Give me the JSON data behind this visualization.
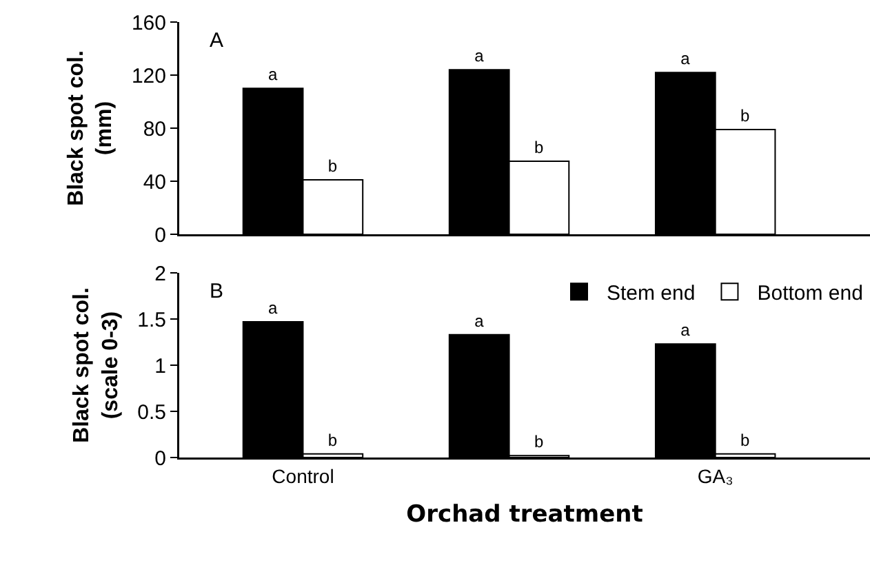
{
  "chart_data": [
    {
      "type": "bar",
      "categories": [
        null,
        null,
        null
      ],
      "ylabel": "Black spot col.\n(mm)",
      "ylim": [
        0,
        160
      ],
      "yticks": [
        0,
        40,
        80,
        120,
        160
      ],
      "legend": false,
      "grid": false,
      "annotations": [
        "A"
      ],
      "series": [
        {
          "color": "#000000",
          "values": [
            110,
            124,
            122
          ],
          "value_labels": [
            "a",
            "a",
            "a"
          ]
        },
        {
          "color": "#ffffff",
          "values": [
            41,
            55,
            79
          ],
          "value_labels": [
            "b",
            "b",
            "b"
          ]
        }
      ]
    },
    {
      "type": "bar",
      "categories": [
        "Control",
        null,
        "GA₃"
      ],
      "xlabel": "Orchad treatment",
      "ylabel": "Black spot col.\n(scale 0-3)",
      "ylim": [
        0,
        2
      ],
      "yticks": [
        0,
        0.5,
        1,
        1.5,
        2
      ],
      "legend": "top right",
      "grid": false,
      "annotations": [
        "B"
      ],
      "series": [
        {
          "name": "Stem end",
          "color": "#000000",
          "values": [
            1.47,
            1.33,
            1.23
          ],
          "value_labels": [
            "a",
            "a",
            "a"
          ]
        },
        {
          "name": "Bottom end",
          "color": "#ffffff",
          "values": [
            0.04,
            0.02,
            0.04
          ],
          "value_labels": [
            "b",
            "b",
            "b"
          ]
        }
      ]
    }
  ]
}
